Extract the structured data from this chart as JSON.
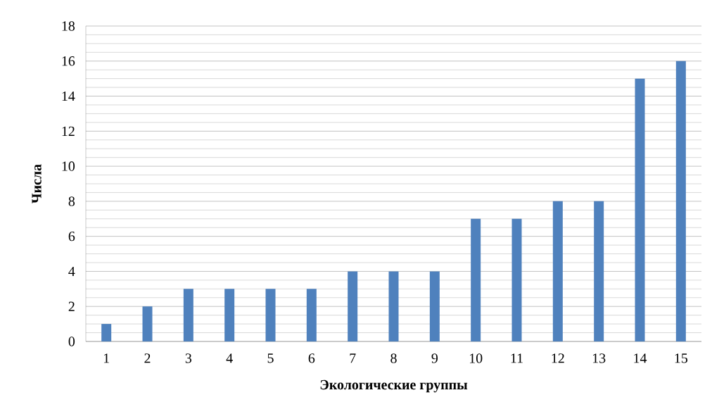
{
  "chart_data": {
    "type": "bar",
    "xlabel": "Экологические группы",
    "ylabel": "Числа",
    "categories": [
      "1",
      "2",
      "3",
      "4",
      "5",
      "6",
      "7",
      "8",
      "9",
      "10",
      "11",
      "12",
      "13",
      "14",
      "15"
    ],
    "values": [
      1,
      2,
      3,
      3,
      3,
      3,
      4,
      4,
      4,
      7,
      7,
      8,
      8,
      15,
      16
    ],
    "color": "#4f81bd",
    "ylim": [
      0,
      18
    ],
    "yticks": [
      0,
      2,
      4,
      6,
      8,
      10,
      12,
      14,
      16,
      18
    ],
    "grid": "y"
  }
}
